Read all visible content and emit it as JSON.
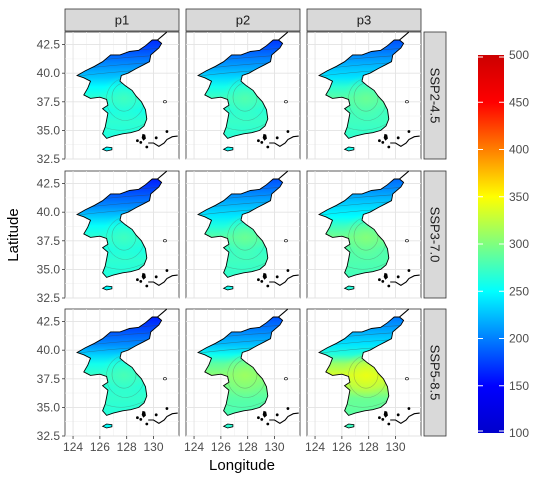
{
  "chart_data": {
    "type": "heatmap",
    "title": "",
    "xlabel": "Longitude",
    "ylabel": "Latitude",
    "xlim": [
      123.4,
      131.9
    ],
    "ylim": [
      32.5,
      43.6
    ],
    "x_ticks": [
      124,
      126,
      128,
      130
    ],
    "y_ticks": [
      32.5,
      35.0,
      37.5,
      40.0,
      42.5
    ],
    "x_tick_labels": [
      "124",
      "126",
      "128",
      "130"
    ],
    "y_tick_labels": [
      "32.5",
      "35.0",
      "37.5",
      "40.0",
      "42.5"
    ],
    "columns": [
      "p1",
      "p2",
      "p3"
    ],
    "rows": [
      "SSP2-4.5",
      "SSP3-7.0",
      "SSP5-8.5"
    ],
    "grid": true,
    "legend": {
      "position": "right",
      "min": 100,
      "max": 500,
      "ticks": [
        100,
        150,
        200,
        250,
        300,
        350,
        400,
        450,
        500
      ],
      "tick_labels": [
        "100",
        "150",
        "200",
        "250",
        "300",
        "350",
        "400",
        "450",
        "500"
      ],
      "colormap": [
        "#0000cc",
        "#0000ff",
        "#007fff",
        "#00ffff",
        "#7fff7f",
        "#ffff00",
        "#ff7f00",
        "#ff0000",
        "#cc0000"
      ]
    },
    "panels": [
      {
        "column": "p1",
        "row": "SSP2-4.5",
        "north": 165,
        "central": 258,
        "south": 268,
        "west_coast": 228,
        "peak": 268
      },
      {
        "column": "p2",
        "row": "SSP2-4.5",
        "north": 170,
        "central": 265,
        "south": 272,
        "west_coast": 235,
        "peak": 275
      },
      {
        "column": "p3",
        "row": "SSP2-4.5",
        "north": 180,
        "central": 275,
        "south": 275,
        "west_coast": 240,
        "peak": 285
      },
      {
        "column": "p1",
        "row": "SSP3-7.0",
        "north": 160,
        "central": 260,
        "south": 268,
        "west_coast": 230,
        "peak": 268
      },
      {
        "column": "p2",
        "row": "SSP3-7.0",
        "north": 180,
        "central": 270,
        "south": 275,
        "west_coast": 242,
        "peak": 285
      },
      {
        "column": "p3",
        "row": "SSP3-7.0",
        "north": 190,
        "central": 282,
        "south": 282,
        "west_coast": 250,
        "peak": 295
      },
      {
        "column": "p1",
        "row": "SSP5-8.5",
        "north": 160,
        "central": 265,
        "south": 270,
        "west_coast": 232,
        "peak": 272
      },
      {
        "column": "p2",
        "row": "SSP5-8.5",
        "north": 180,
        "central": 295,
        "south": 285,
        "west_coast": 255,
        "peak": 305
      },
      {
        "column": "p3",
        "row": "SSP5-8.5",
        "north": 195,
        "central": 318,
        "south": 292,
        "west_coast": 265,
        "peak": 335
      }
    ]
  }
}
